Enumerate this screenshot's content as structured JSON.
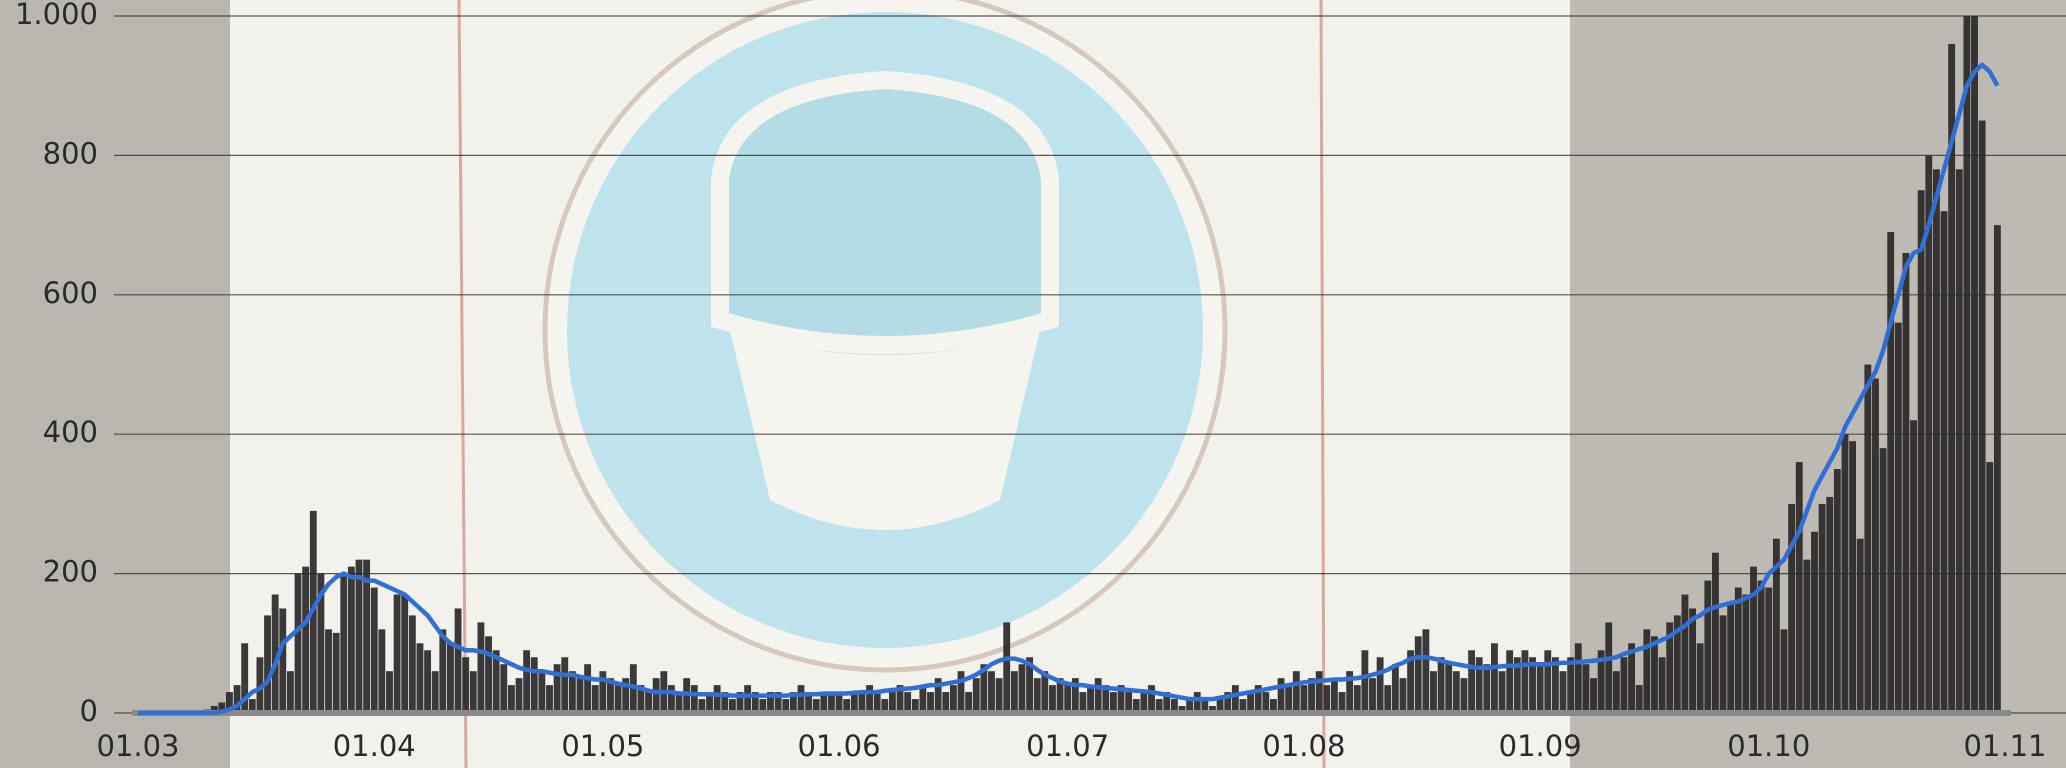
{
  "chart_data": {
    "type": "combo",
    "grid": true,
    "ylim": [
      0,
      1000
    ],
    "yticks": [
      0,
      200,
      400,
      600,
      800,
      {
        "value": 1000,
        "label": "1.000"
      }
    ],
    "categories": [
      "01.03",
      null,
      null,
      null,
      null,
      null,
      null,
      null,
      null,
      null,
      null,
      null,
      null,
      null,
      null,
      null,
      null,
      null,
      null,
      null,
      null,
      null,
      null,
      null,
      null,
      null,
      null,
      null,
      null,
      null,
      null,
      "01.04",
      null,
      null,
      null,
      null,
      null,
      null,
      null,
      null,
      null,
      null,
      null,
      null,
      null,
      null,
      null,
      null,
      null,
      null,
      null,
      null,
      null,
      null,
      null,
      null,
      null,
      null,
      null,
      null,
      null,
      "01.05",
      null,
      null,
      null,
      null,
      null,
      null,
      null,
      null,
      null,
      null,
      null,
      null,
      null,
      null,
      null,
      null,
      null,
      null,
      null,
      null,
      null,
      null,
      null,
      null,
      null,
      null,
      null,
      null,
      null,
      null,
      "01.06",
      null,
      null,
      null,
      null,
      null,
      null,
      null,
      null,
      null,
      null,
      null,
      null,
      null,
      null,
      null,
      null,
      null,
      null,
      null,
      null,
      null,
      null,
      null,
      null,
      null,
      null,
      null,
      null,
      null,
      "01.07",
      null,
      null,
      null,
      null,
      null,
      null,
      null,
      null,
      null,
      null,
      null,
      null,
      null,
      null,
      null,
      null,
      null,
      null,
      null,
      null,
      null,
      null,
      null,
      null,
      null,
      null,
      null,
      null,
      null,
      null,
      "01.08",
      null,
      null,
      null,
      null,
      null,
      null,
      null,
      null,
      null,
      null,
      null,
      null,
      null,
      null,
      null,
      null,
      null,
      null,
      null,
      null,
      null,
      null,
      null,
      null,
      null,
      null,
      null,
      null,
      null,
      null,
      "01.09",
      null,
      null,
      null,
      null,
      null,
      null,
      null,
      null,
      null,
      null,
      null,
      null,
      null,
      null,
      null,
      null,
      null,
      null,
      null,
      null,
      null,
      null,
      null,
      null,
      null,
      null,
      null,
      null,
      null,
      "01.10",
      null,
      null,
      null,
      null,
      null,
      null,
      null,
      null,
      null,
      null,
      null,
      null,
      null,
      null,
      null,
      null,
      null,
      null,
      null,
      null,
      null,
      null,
      null,
      null,
      null,
      null,
      null,
      null,
      null,
      null,
      "01.11"
    ],
    "series": [
      {
        "type": "bar",
        "color": "#2a2828",
        "values": [
          0,
          0,
          0,
          0,
          0,
          0,
          0,
          0,
          0,
          5,
          10,
          15,
          30,
          40,
          100,
          20,
          80,
          140,
          170,
          150,
          60,
          200,
          210,
          290,
          200,
          120,
          115,
          200,
          210,
          220,
          220,
          180,
          120,
          60,
          170,
          170,
          140,
          100,
          90,
          60,
          120,
          100,
          150,
          80,
          60,
          130,
          110,
          90,
          70,
          40,
          50,
          90,
          80,
          60,
          40,
          70,
          80,
          60,
          50,
          70,
          40,
          60,
          50,
          40,
          50,
          70,
          40,
          30,
          50,
          60,
          40,
          30,
          50,
          40,
          20,
          30,
          40,
          30,
          20,
          30,
          40,
          30,
          20,
          30,
          30,
          20,
          30,
          40,
          30,
          20,
          30,
          30,
          30,
          20,
          30,
          30,
          40,
          30,
          20,
          30,
          40,
          30,
          20,
          40,
          30,
          50,
          30,
          40,
          60,
          30,
          50,
          70,
          60,
          50,
          130,
          60,
          70,
          80,
          50,
          60,
          40,
          50,
          40,
          50,
          30,
          40,
          50,
          40,
          30,
          40,
          30,
          20,
          30,
          40,
          20,
          30,
          20,
          10,
          20,
          30,
          20,
          10,
          20,
          30,
          40,
          20,
          30,
          40,
          30,
          20,
          50,
          40,
          60,
          40,
          50,
          60,
          40,
          50,
          30,
          60,
          40,
          90,
          50,
          80,
          40,
          70,
          50,
          90,
          110,
          120,
          60,
          80,
          70,
          60,
          50,
          90,
          80,
          70,
          100,
          60,
          90,
          80,
          90,
          80,
          70,
          90,
          80,
          60,
          80,
          100,
          70,
          50,
          90,
          130,
          60,
          80,
          100,
          40,
          120,
          110,
          80,
          130,
          140,
          170,
          150,
          100,
          190,
          230,
          140,
          160,
          180,
          170,
          210,
          190,
          180,
          250,
          120,
          300,
          360,
          220,
          260,
          300,
          310,
          350,
          400,
          390,
          250,
          500,
          480,
          380,
          690,
          560,
          660,
          420,
          750,
          800,
          780,
          720,
          960,
          780,
          1000,
          1000,
          850,
          360,
          700,
          null
        ]
      },
      {
        "type": "line",
        "color": "#2f6fd6",
        "values": [
          0,
          0,
          0,
          0,
          0,
          0,
          0,
          0,
          0,
          0,
          0,
          2,
          5,
          10,
          20,
          30,
          35,
          45,
          70,
          100,
          110,
          120,
          130,
          150,
          170,
          185,
          195,
          200,
          195,
          195,
          190,
          190,
          185,
          180,
          175,
          170,
          160,
          150,
          140,
          125,
          110,
          100,
          95,
          90,
          90,
          88,
          85,
          80,
          75,
          70,
          65,
          62,
          60,
          60,
          58,
          56,
          55,
          55,
          52,
          50,
          48,
          48,
          45,
          42,
          40,
          38,
          35,
          32,
          30,
          30,
          30,
          28,
          28,
          27,
          27,
          27,
          26,
          26,
          25,
          25,
          25,
          25,
          25,
          25,
          25,
          25,
          26,
          26,
          27,
          27,
          28,
          28,
          28,
          28,
          29,
          30,
          30,
          30,
          32,
          33,
          34,
          35,
          36,
          38,
          40,
          40,
          42,
          44,
          46,
          50,
          55,
          62,
          70,
          75,
          78,
          78,
          75,
          70,
          62,
          55,
          50,
          45,
          42,
          40,
          40,
          38,
          37,
          36,
          35,
          34,
          33,
          32,
          31,
          30,
          28,
          26,
          24,
          22,
          20,
          20,
          20,
          20,
          22,
          24,
          26,
          28,
          30,
          32,
          34,
          36,
          38,
          40,
          42,
          44,
          45,
          46,
          47,
          48,
          48,
          49,
          50,
          52,
          55,
          58,
          62,
          68,
          72,
          78,
          80,
          80,
          78,
          75,
          72,
          70,
          68,
          66,
          65,
          65,
          66,
          67,
          68,
          68,
          69,
          70,
          70,
          70,
          71,
          72,
          72,
          73,
          74,
          75,
          76,
          78,
          80,
          85,
          88,
          92,
          95,
          100,
          105,
          110,
          118,
          125,
          135,
          140,
          148,
          152,
          155,
          158,
          160,
          165,
          170,
          180,
          200,
          210,
          220,
          240,
          260,
          290,
          320,
          340,
          360,
          380,
          410,
          430,
          450,
          470,
          490,
          520,
          560,
          600,
          640,
          660,
          665,
          700,
          740,
          780,
          820,
          860,
          900,
          920,
          930,
          920,
          900,
          null
        ]
      }
    ]
  }
}
